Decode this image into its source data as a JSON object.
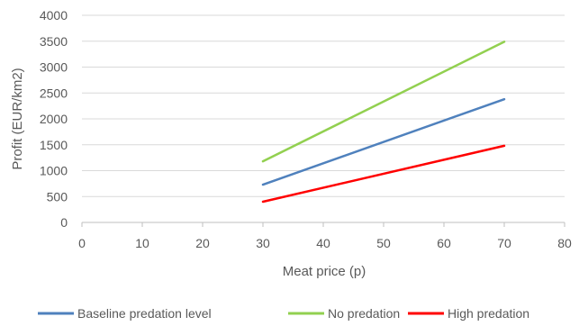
{
  "chart_data": {
    "type": "line",
    "title": "",
    "xlabel": "Meat price (p)",
    "ylabel": "Profit (EUR/km2)",
    "xlim": [
      0,
      80
    ],
    "ylim": [
      0,
      4000
    ],
    "xticks": [
      0,
      10,
      20,
      30,
      40,
      50,
      60,
      70,
      80
    ],
    "yticks": [
      0,
      500,
      1000,
      1500,
      2000,
      2500,
      3000,
      3500,
      4000
    ],
    "grid": "horizontal",
    "legend_position": "bottom",
    "series": [
      {
        "name": "Baseline predation level",
        "color": "#4f81bd",
        "x": [
          30,
          70
        ],
        "y": [
          730,
          2380
        ]
      },
      {
        "name": "No predation",
        "color": "#92d050",
        "x": [
          30,
          70
        ],
        "y": [
          1180,
          3490
        ]
      },
      {
        "name": "High predation",
        "color": "#ff0000",
        "x": [
          30,
          70
        ],
        "y": [
          400,
          1480
        ]
      }
    ]
  }
}
